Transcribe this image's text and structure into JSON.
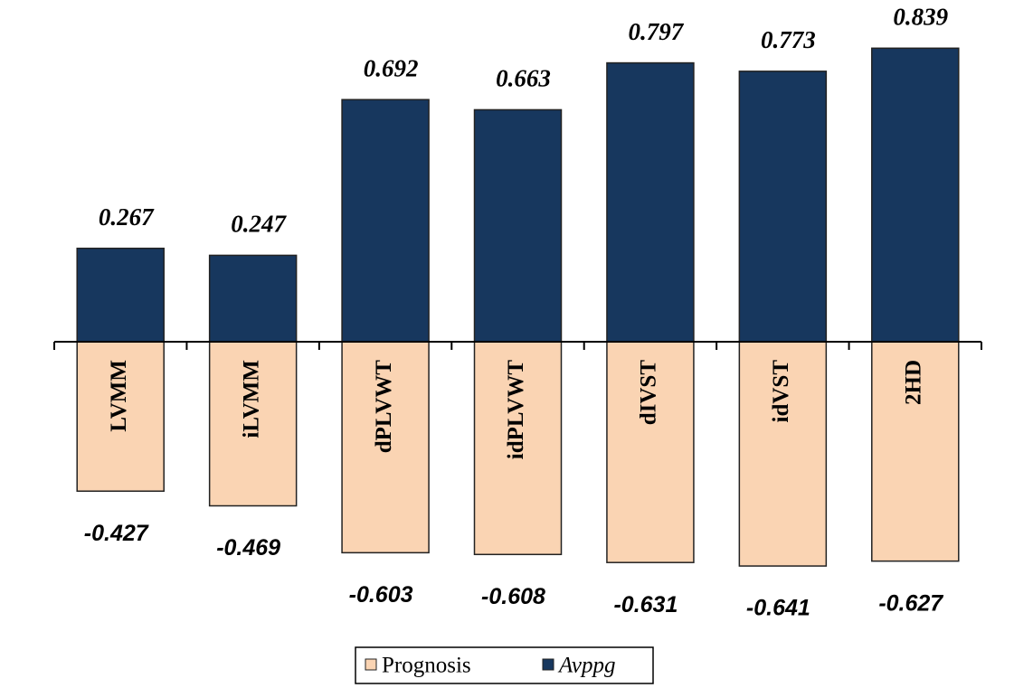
{
  "chart_data": {
    "type": "bar",
    "categories": [
      "LVMM",
      "iLVMM",
      "dPLVWT",
      "idPLVWT",
      "dIVST",
      "idVST",
      "2HD"
    ],
    "series": [
      {
        "name": "Prognosis",
        "color": "#fad4b3",
        "values": [
          -0.427,
          -0.469,
          -0.603,
          -0.608,
          -0.631,
          -0.641,
          -0.627
        ]
      },
      {
        "name": "Avppg",
        "color": "#17375e",
        "values": [
          0.267,
          0.247,
          0.692,
          0.663,
          0.797,
          0.773,
          0.839
        ]
      }
    ]
  }
}
